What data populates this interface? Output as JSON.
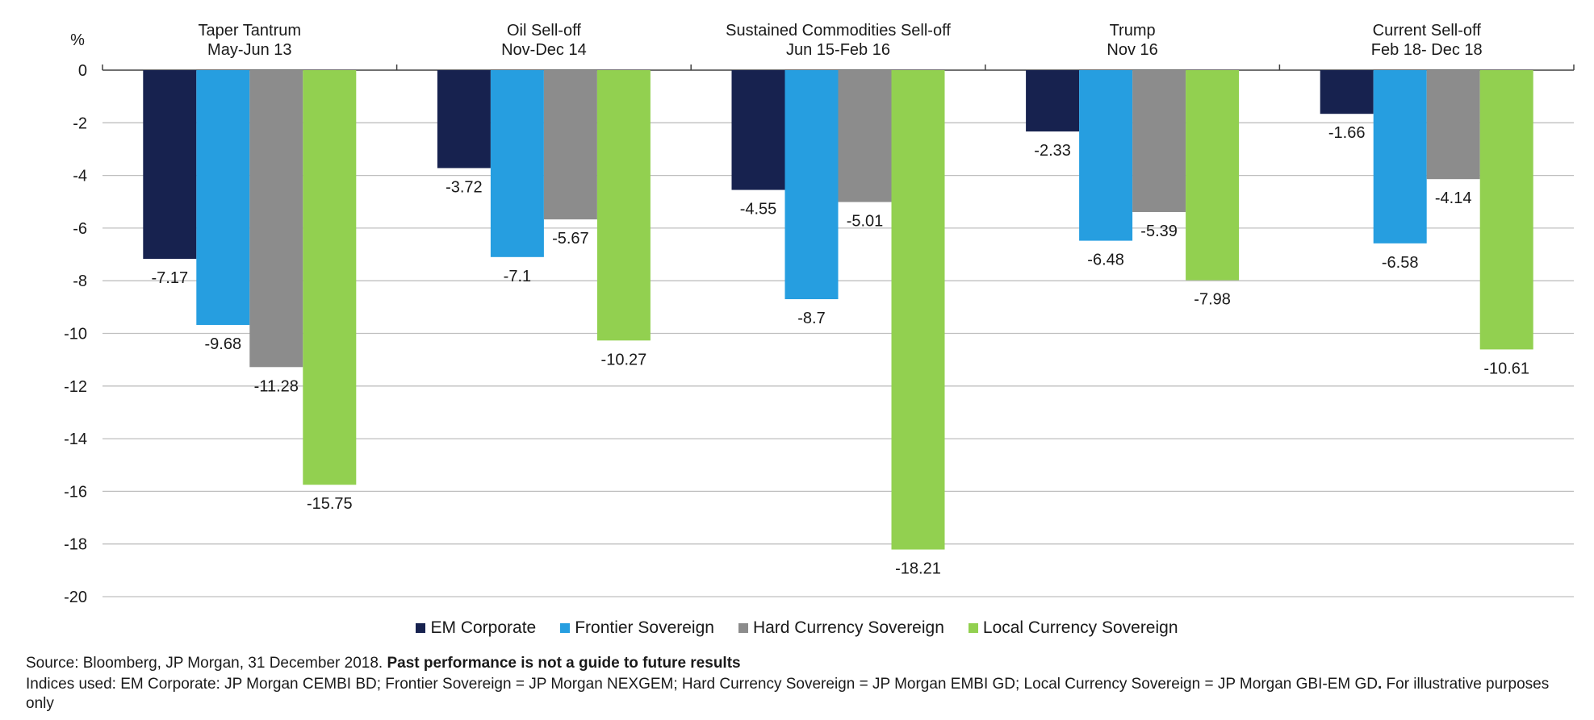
{
  "chart_data": {
    "type": "bar",
    "ylabel": "%",
    "ylim": [
      -20,
      0
    ],
    "yticks": [
      0,
      -2,
      -4,
      -6,
      -8,
      -10,
      -12,
      -14,
      -16,
      -18,
      -20
    ],
    "grid": true,
    "categories": [
      [
        "Taper Tantrum",
        "May-Jun 13"
      ],
      [
        "Oil Sell-off",
        "Nov-Dec 14"
      ],
      [
        "Sustained Commodities Sell-off",
        "Jun 15-Feb 16"
      ],
      [
        "Trump",
        "Nov 16"
      ],
      [
        "Current Sell-off",
        "Feb 18- Dec 18"
      ]
    ],
    "series": [
      {
        "name": "EM Corporate",
        "color": "#17224f",
        "values": [
          -7.17,
          -3.72,
          -4.55,
          -2.33,
          -1.66
        ]
      },
      {
        "name": "Frontier Sovereign",
        "color": "#269ee0",
        "values": [
          -9.68,
          -7.1,
          -8.7,
          -6.48,
          -6.58
        ]
      },
      {
        "name": "Hard Currency Sovereign",
        "color": "#8c8c8c",
        "values": [
          -11.28,
          -5.67,
          -5.01,
          -5.39,
          -4.14
        ]
      },
      {
        "name": "Local Currency Sovereign",
        "color": "#92d050",
        "values": [
          -15.75,
          -10.27,
          -18.21,
          -7.98,
          -10.61
        ]
      }
    ],
    "legend_position": "bottom"
  },
  "footnotes": {
    "source_prefix": "Source: Bloomberg, JP Morgan, 31 December 2018. ",
    "source_bold": "Past performance is not a guide to future results",
    "indices_main": "Indices used: EM Corporate: JP Morgan CEMBI BD; Frontier Sovereign = JP Morgan NEXGEM; Hard Currency Sovereign = JP Morgan EMBI GD; Local Currency Sovereign = JP Morgan GBI-EM GD",
    "indices_bold": ".",
    "indices_tail": " For illustrative purposes only"
  }
}
